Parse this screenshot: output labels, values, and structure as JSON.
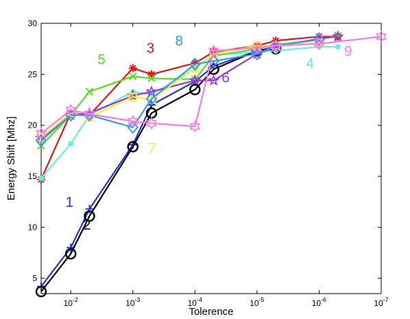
{
  "chart_data": {
    "type": "line",
    "xlabel": "Tolerence",
    "ylabel": "Energy Shift [Mhz]",
    "x_scale": "log-reversed",
    "xlim": [
      0.03,
      1e-07
    ],
    "ylim": [
      3.5,
      30
    ],
    "grid": false,
    "x_ticks": [
      {
        "value": 0.01,
        "base": "10",
        "exp": "-2"
      },
      {
        "value": 0.001,
        "base": "10",
        "exp": "-3"
      },
      {
        "value": 0.0001,
        "base": "10",
        "exp": "-4"
      },
      {
        "value": 1e-05,
        "base": "10",
        "exp": "-5"
      },
      {
        "value": 1e-06,
        "base": "10",
        "exp": "-6"
      },
      {
        "value": 1e-07,
        "base": "10",
        "exp": "-7"
      }
    ],
    "y_ticks": [
      "5",
      "10",
      "15",
      "20",
      "25",
      "30"
    ],
    "series": [
      {
        "label": "1",
        "color": "#2233dd",
        "marker": "plus",
        "x": [
          0.03,
          0.01,
          0.005,
          0.001,
          0.0005,
          0.0001,
          5e-05,
          1e-05,
          5e-06
        ],
        "y": [
          4.2,
          8.0,
          11.8,
          18.1,
          22.0,
          24.3,
          25.8,
          27.3,
          27.7
        ]
      },
      {
        "label": "2",
        "color": "#000000",
        "marker": "circle",
        "x": [
          0.03,
          0.01,
          0.005,
          0.001,
          0.0005,
          0.0001,
          5e-05,
          1e-05,
          5e-06
        ],
        "y": [
          3.7,
          7.4,
          11.1,
          17.9,
          21.2,
          23.5,
          25.5,
          27.3,
          27.5
        ]
      },
      {
        "label": "3",
        "color": "#ee1111",
        "marker": "asterisk",
        "x": [
          0.03,
          0.01,
          0.005,
          0.001,
          0.0005,
          0.0001,
          5e-05,
          1e-05,
          5e-06,
          1e-06,
          5e-07
        ],
        "y": [
          14.7,
          21.2,
          21.0,
          25.6,
          25.0,
          26.1,
          27.2,
          27.8,
          28.3,
          28.7,
          28.7
        ]
      },
      {
        "label": "4",
        "color": "#66eedd",
        "marker": "dot",
        "x": [
          0.03,
          0.01,
          0.005,
          0.001,
          0.0005,
          0.0001,
          5e-05,
          1e-05,
          5e-06,
          1e-06,
          5e-07
        ],
        "y": [
          14.8,
          18.2,
          21.0,
          23.3,
          23.0,
          25.6,
          26.9,
          27.2,
          27.3,
          27.7,
          27.7
        ]
      },
      {
        "label": "5",
        "color": "#55dd22",
        "marker": "x",
        "x": [
          0.03,
          0.01,
          0.005,
          0.001,
          0.0005,
          0.0001,
          5e-05,
          1e-05,
          5e-06,
          1e-06,
          5e-07
        ],
        "y": [
          18.0,
          21.0,
          23.3,
          24.8,
          24.6,
          24.5,
          26.8,
          27.5,
          27.9,
          28.4,
          28.8
        ]
      },
      {
        "label": "6",
        "color": "#9933dd",
        "marker": "star",
        "x": [
          0.03,
          0.01,
          0.005,
          0.001,
          0.0005,
          0.0001,
          5e-05,
          1e-05,
          5e-06,
          1e-06,
          5e-07
        ],
        "y": [
          18.7,
          21.0,
          21.2,
          22.9,
          23.3,
          24.4,
          24.4,
          27.0,
          27.7,
          28.5,
          28.7
        ]
      },
      {
        "label": "7",
        "color": "#ffee22",
        "marker": "square",
        "x": [
          0.03,
          0.01,
          0.005,
          0.001,
          0.0005,
          0.0001,
          5e-05,
          1e-05,
          5e-06,
          1e-06
        ],
        "y": [
          18.8,
          21.2,
          20.8,
          22.8,
          22.5,
          25.6,
          27.0,
          27.8,
          27.8,
          28.1
        ]
      },
      {
        "label": "8",
        "color": "#3399ee",
        "marker": "diamond",
        "x": [
          0.03,
          0.01,
          0.005,
          0.001,
          0.0005,
          0.0001,
          5e-05,
          1e-05,
          5e-06,
          1e-06
        ],
        "y": [
          18.5,
          21.0,
          21.0,
          19.8,
          22.6,
          26.0,
          26.3,
          27.0,
          27.8,
          28.4
        ]
      },
      {
        "label": "9",
        "color": "#ff77ee",
        "marker": "hexagram",
        "x": [
          0.03,
          0.01,
          0.005,
          0.001,
          0.0005,
          0.0001,
          5e-05,
          1e-05,
          5e-06,
          1e-06,
          1e-07
        ],
        "y": [
          19.2,
          21.5,
          21.1,
          20.4,
          20.2,
          19.9,
          27.3,
          27.6,
          27.8,
          28.0,
          28.7
        ]
      }
    ],
    "annotations": [
      {
        "text": "1",
        "color": "#2233dd",
        "x": 0.0105,
        "y": 12.0
      },
      {
        "text": "2",
        "color": "#000000",
        "x": 0.0055,
        "y": 9.8
      },
      {
        "text": "3",
        "color": "#ee1111",
        "x": 0.00052,
        "y": 27.1
      },
      {
        "text": "4",
        "color": "#66eedd",
        "x": 1.4e-06,
        "y": 25.6
      },
      {
        "text": "5",
        "color": "#55dd22",
        "x": 0.0032,
        "y": 26.0
      },
      {
        "text": "6",
        "color": "#9933dd",
        "x": 3.2e-05,
        "y": 24.2
      },
      {
        "text": "7",
        "color": "#ffee22",
        "x": 0.00049,
        "y": 17.3
      },
      {
        "text": "8",
        "color": "#3399ee",
        "x": 0.00018,
        "y": 27.8
      },
      {
        "text": "9",
        "color": "#ff77ee",
        "x": 3.4e-07,
        "y": 26.8
      }
    ]
  }
}
